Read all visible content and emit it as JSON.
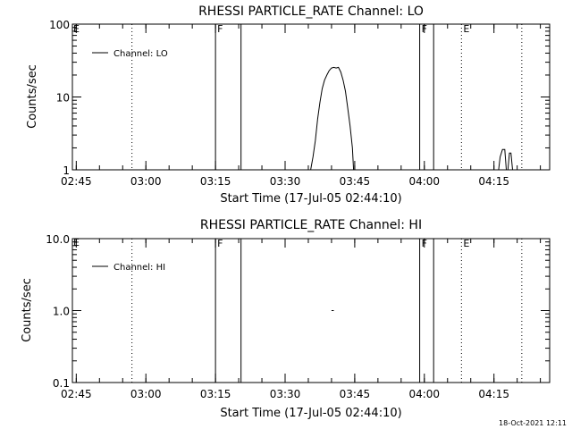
{
  "footer": {
    "timestamp": "18-Oct-2021 12:11"
  },
  "chart_data": [
    {
      "type": "line",
      "title": "RHESSI PARTICLE_RATE Channel: LO",
      "xlabel": "Start Time (17-Jul-05 02:44:10)",
      "ylabel": "Counts/sec",
      "yscale": "log",
      "ylim": [
        1,
        100
      ],
      "yticks": [
        {
          "value": 1,
          "label": "1"
        },
        {
          "value": 10,
          "label": "10"
        },
        {
          "value": 100,
          "label": "100"
        }
      ],
      "xlim": [
        "02:44:10",
        "04:27:00"
      ],
      "xticks": [
        "02:45",
        "03:00",
        "03:15",
        "03:30",
        "03:45",
        "04:00",
        "04:15"
      ],
      "legend": {
        "label": "Channel: LO",
        "position": "top-left"
      },
      "vlines": [
        {
          "time": "02:57:00",
          "style": "dotted",
          "flag": ""
        },
        {
          "time": "03:15:00",
          "style": "solid",
          "flag": "F"
        },
        {
          "time": "03:20:30",
          "style": "solid",
          "flag": ""
        },
        {
          "time": "03:59:00",
          "style": "solid",
          "flag": "F"
        },
        {
          "time": "04:02:00",
          "style": "solid",
          "flag": ""
        },
        {
          "time": "04:08:00",
          "style": "dotted",
          "flag": "E"
        },
        {
          "time": "04:21:00",
          "style": "dotted",
          "flag": ""
        }
      ],
      "corner_flag": "E",
      "series": [
        {
          "name": "Channel: LO",
          "segments": [
            [
              [
                "03:35:30",
                1.0
              ],
              [
                "03:36:00",
                1.5
              ],
              [
                "03:36:30",
                2.5
              ],
              [
                "03:37:00",
                5.0
              ],
              [
                "03:37:30",
                8.5
              ],
              [
                "03:38:00",
                13.0
              ],
              [
                "03:38:30",
                17.0
              ],
              [
                "03:39:00",
                20.0
              ],
              [
                "03:39:30",
                23.0
              ],
              [
                "03:40:00",
                25.0
              ],
              [
                "03:40:30",
                25.5
              ],
              [
                "03:41:00",
                25.0
              ],
              [
                "03:41:30",
                25.5
              ],
              [
                "03:42:00",
                22.0
              ],
              [
                "03:42:30",
                17.0
              ],
              [
                "03:43:00",
                12.0
              ],
              [
                "03:43:30",
                7.0
              ],
              [
                "03:44:00",
                4.0
              ],
              [
                "03:44:30",
                2.0
              ],
              [
                "03:44:45",
                1.0
              ]
            ],
            [
              [
                "04:16:00",
                1.0
              ],
              [
                "04:16:20",
                1.5
              ],
              [
                "04:16:50",
                1.9
              ],
              [
                "04:17:20",
                1.9
              ],
              [
                "04:17:40",
                1.0
              ]
            ],
            [
              [
                "04:18:00",
                1.0
              ],
              [
                "04:18:20",
                1.7
              ],
              [
                "04:18:40",
                1.7
              ],
              [
                "04:19:00",
                1.0
              ]
            ]
          ]
        }
      ]
    },
    {
      "type": "line",
      "title": "RHESSI PARTICLE_RATE Channel: HI",
      "xlabel": "Start Time (17-Jul-05 02:44:10)",
      "ylabel": "Counts/sec",
      "yscale": "log",
      "ylim": [
        0.1,
        10
      ],
      "yticks": [
        {
          "value": 0.1,
          "label": "0.1"
        },
        {
          "value": 1,
          "label": "1.0"
        },
        {
          "value": 10,
          "label": "10.0"
        }
      ],
      "xlim": [
        "02:44:10",
        "04:27:00"
      ],
      "xticks": [
        "02:45",
        "03:00",
        "03:15",
        "03:30",
        "03:45",
        "04:00",
        "04:15"
      ],
      "legend": {
        "label": "Channel: HI",
        "position": "top-left"
      },
      "vlines": [
        {
          "time": "02:57:00",
          "style": "dotted",
          "flag": ""
        },
        {
          "time": "03:15:00",
          "style": "solid",
          "flag": "F"
        },
        {
          "time": "03:20:30",
          "style": "solid",
          "flag": ""
        },
        {
          "time": "03:59:00",
          "style": "solid",
          "flag": "F"
        },
        {
          "time": "04:02:00",
          "style": "solid",
          "flag": ""
        },
        {
          "time": "04:08:00",
          "style": "dotted",
          "flag": "E"
        },
        {
          "time": "04:21:00",
          "style": "dotted",
          "flag": ""
        }
      ],
      "corner_flag": "E",
      "series": [
        {
          "name": "Channel: HI",
          "segments": [
            [
              [
                "03:40:00",
                1.0
              ],
              [
                "03:40:30",
                1.0
              ]
            ]
          ]
        }
      ]
    }
  ]
}
